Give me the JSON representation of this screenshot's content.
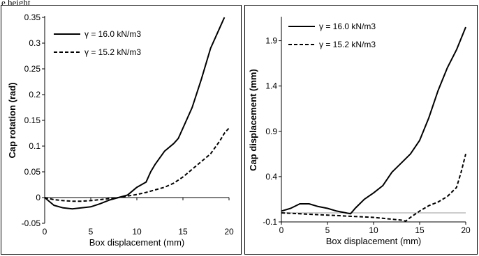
{
  "top_text": "e height",
  "chart_data": [
    {
      "type": "line",
      "title": "",
      "xlabel": "Box displacement (mm)",
      "ylabel": "Cap rotation (rad)",
      "xlim": [
        0,
        20
      ],
      "ylim": [
        -0.05,
        0.35
      ],
      "xticks": [
        0,
        5,
        10,
        15,
        20
      ],
      "yticks": [
        -0.05,
        0,
        0.05,
        0.1,
        0.15,
        0.2,
        0.25,
        0.3,
        0.35
      ],
      "xtick_labels": [
        "0",
        "5",
        "10",
        "15",
        "20"
      ],
      "ytick_labels": [
        "-0.05",
        "0",
        "0.05",
        "0.1",
        "0.15",
        "0.2",
        "0.25",
        "0.3",
        "0.35"
      ],
      "grid": false,
      "legend_position": "top-left",
      "series": [
        {
          "name": "γ = 16.0 kN/m3",
          "style": "solid",
          "color": "#000000",
          "x": [
            0,
            1,
            2,
            3,
            4,
            5,
            6,
            7,
            8,
            9,
            10,
            11,
            11.5,
            12,
            13,
            14,
            14.5,
            15,
            16,
            17,
            18,
            19,
            19.5
          ],
          "y": [
            0.0,
            -0.015,
            -0.02,
            -0.022,
            -0.02,
            -0.018,
            -0.012,
            -0.005,
            0.0,
            0.005,
            0.02,
            0.03,
            0.05,
            0.065,
            0.09,
            0.105,
            0.115,
            0.135,
            0.175,
            0.23,
            0.29,
            0.33,
            0.35
          ]
        },
        {
          "name": "γ = 15.2 kN/m3",
          "style": "dashed",
          "color": "#000000",
          "x": [
            0,
            1,
            2,
            3,
            4,
            5,
            6,
            7,
            8,
            9,
            10,
            11,
            12,
            13,
            14,
            15,
            16,
            17,
            18,
            19,
            19.5,
            20
          ],
          "y": [
            0.0,
            -0.004,
            -0.006,
            -0.007,
            -0.007,
            -0.006,
            -0.004,
            -0.002,
            0.0,
            0.003,
            0.006,
            0.01,
            0.015,
            0.02,
            0.028,
            0.04,
            0.055,
            0.07,
            0.085,
            0.11,
            0.125,
            0.135
          ]
        }
      ]
    },
    {
      "type": "line",
      "title": "",
      "xlabel": "Box displacement (mm)",
      "ylabel": "Cap displacement (mm)",
      "xlim": [
        0,
        20
      ],
      "ylim": [
        -0.1,
        2.15
      ],
      "xticks": [
        0,
        5,
        10,
        15,
        20
      ],
      "yticks": [
        -0.1,
        0.4,
        0.9,
        1.4,
        1.9
      ],
      "xtick_labels": [
        "0",
        "5",
        "10",
        "15",
        "20"
      ],
      "ytick_labels": [
        "-0.1",
        "0.4",
        "0.9",
        "1.4",
        "1.9"
      ],
      "grid": false,
      "legend_position": "top-left",
      "series": [
        {
          "name": "γ = 16.0 kN/m3",
          "style": "solid",
          "color": "#000000",
          "x": [
            0,
            1,
            2,
            3,
            4,
            5,
            6,
            7,
            7.5,
            8,
            9,
            10,
            11,
            12,
            13,
            14,
            15,
            16,
            17,
            18,
            19,
            20
          ],
          "y": [
            0.02,
            0.05,
            0.1,
            0.1,
            0.07,
            0.05,
            0.02,
            0.0,
            -0.01,
            0.05,
            0.15,
            0.22,
            0.3,
            0.45,
            0.55,
            0.65,
            0.8,
            1.05,
            1.35,
            1.6,
            1.8,
            2.05
          ]
        },
        {
          "name": "γ = 15.2 kN/m3",
          "style": "dashed",
          "color": "#000000",
          "x": [
            0,
            2,
            4,
            6,
            8,
            10,
            12,
            13,
            13.5,
            14,
            15,
            16,
            17,
            18,
            19,
            19.5,
            20
          ],
          "y": [
            0.0,
            -0.01,
            -0.02,
            -0.03,
            -0.04,
            -0.05,
            -0.07,
            -0.08,
            -0.09,
            -0.05,
            0.02,
            0.08,
            0.12,
            0.18,
            0.28,
            0.45,
            0.65
          ]
        }
      ]
    }
  ]
}
